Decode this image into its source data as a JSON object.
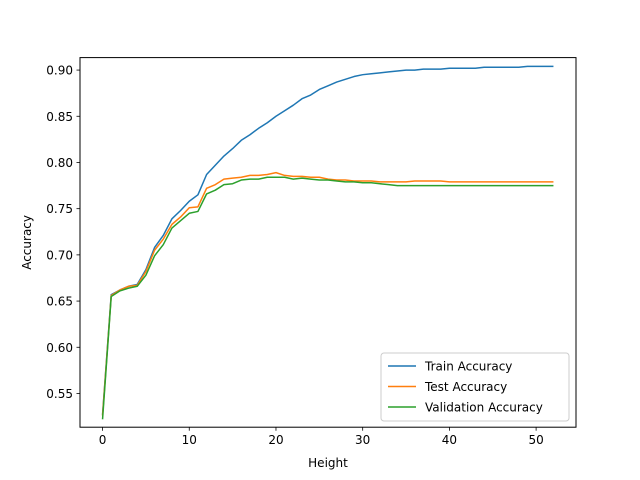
{
  "chart_data": {
    "type": "line",
    "xlabel": "Height",
    "ylabel": "Accuracy",
    "xlim": [
      -2.6,
      54.6
    ],
    "ylim": [
      0.5135,
      0.9135
    ],
    "xticks": [
      0,
      10,
      20,
      30,
      40,
      50
    ],
    "yticks": [
      0.55,
      0.6,
      0.65,
      0.7,
      0.75,
      0.8,
      0.85,
      0.9
    ],
    "legend_position": "lower-right",
    "grid": false,
    "x": [
      0,
      1,
      2,
      3,
      4,
      5,
      6,
      7,
      8,
      9,
      10,
      11,
      12,
      13,
      14,
      15,
      16,
      17,
      18,
      19,
      20,
      21,
      22,
      23,
      24,
      25,
      26,
      27,
      28,
      29,
      30,
      31,
      32,
      33,
      34,
      35,
      36,
      37,
      38,
      39,
      40,
      41,
      42,
      43,
      44,
      45,
      46,
      47,
      48,
      49,
      50,
      51,
      52
    ],
    "series": [
      {
        "name": "Train Accuracy",
        "color": "#1f77b4",
        "values": [
          0.527,
          0.657,
          0.662,
          0.666,
          0.668,
          0.684,
          0.708,
          0.721,
          0.739,
          0.748,
          0.758,
          0.765,
          0.787,
          0.797,
          0.807,
          0.815,
          0.824,
          0.83,
          0.837,
          0.843,
          0.85,
          0.856,
          0.862,
          0.869,
          0.873,
          0.879,
          0.883,
          0.887,
          0.89,
          0.893,
          0.895,
          0.896,
          0.897,
          0.898,
          0.899,
          0.9,
          0.9,
          0.901,
          0.901,
          0.901,
          0.902,
          0.902,
          0.902,
          0.902,
          0.903,
          0.903,
          0.903,
          0.903,
          0.903,
          0.904,
          0.904,
          0.904,
          0.904
        ]
      },
      {
        "name": "Test Accuracy",
        "color": "#ff7f0e",
        "values": [
          0.526,
          0.656,
          0.662,
          0.666,
          0.667,
          0.682,
          0.705,
          0.717,
          0.733,
          0.741,
          0.751,
          0.752,
          0.772,
          0.776,
          0.782,
          0.783,
          0.784,
          0.786,
          0.786,
          0.787,
          0.789,
          0.786,
          0.785,
          0.785,
          0.784,
          0.784,
          0.782,
          0.781,
          0.781,
          0.78,
          0.78,
          0.78,
          0.779,
          0.779,
          0.779,
          0.779,
          0.78,
          0.78,
          0.78,
          0.78,
          0.779,
          0.779,
          0.779,
          0.779,
          0.779,
          0.779,
          0.779,
          0.779,
          0.779,
          0.779,
          0.779,
          0.779,
          0.779
        ]
      },
      {
        "name": "Validation Accuracy",
        "color": "#2ca02c",
        "values": [
          0.522,
          0.655,
          0.661,
          0.664,
          0.666,
          0.678,
          0.699,
          0.711,
          0.729,
          0.737,
          0.745,
          0.747,
          0.766,
          0.77,
          0.776,
          0.777,
          0.781,
          0.782,
          0.782,
          0.784,
          0.784,
          0.784,
          0.782,
          0.783,
          0.782,
          0.781,
          0.781,
          0.78,
          0.779,
          0.779,
          0.778,
          0.778,
          0.777,
          0.776,
          0.775,
          0.775,
          0.775,
          0.775,
          0.775,
          0.775,
          0.775,
          0.775,
          0.775,
          0.775,
          0.775,
          0.775,
          0.775,
          0.775,
          0.775,
          0.775,
          0.775,
          0.775,
          0.775
        ]
      }
    ]
  }
}
